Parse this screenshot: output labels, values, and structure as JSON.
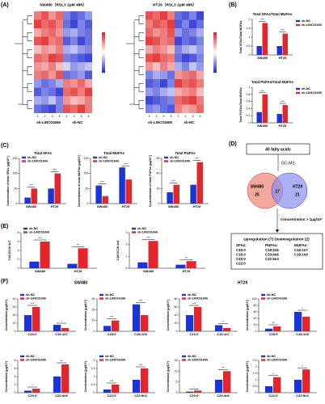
{
  "panel_labels": [
    "(A)",
    "(B)",
    "(C)",
    "(D)",
    "(E)",
    "(F)"
  ],
  "heatmaps": [
    {
      "title": "SW480（RSL3 2μM 48h）",
      "groups": [
        "sh-LINC01606",
        "sh-NC"
      ],
      "columns": [
        "1",
        "2",
        "3",
        "4",
        "1",
        "2",
        "3",
        "4"
      ],
      "values": [
        [
          0.6,
          0.8,
          0.5,
          0.7,
          -0.6,
          -0.8,
          -0.7,
          -0.5
        ],
        [
          0.9,
          0.7,
          0.8,
          0.6,
          -0.7,
          -0.9,
          -0.6,
          -0.8
        ],
        [
          0.4,
          0.6,
          0.7,
          0.5,
          -0.5,
          -0.4,
          -0.6,
          -0.7
        ],
        [
          0.8,
          0.9,
          0.6,
          0.7,
          -0.8,
          -0.6,
          -0.9,
          -0.7
        ],
        [
          0.3,
          0.5,
          0.4,
          0.6,
          -0.4,
          -0.3,
          -0.5,
          -0.6
        ],
        [
          0.7,
          0.6,
          0.9,
          0.8,
          -0.6,
          -0.7,
          -0.8,
          -0.9
        ],
        [
          0.5,
          0.4,
          0.6,
          0.3,
          -0.2,
          -0.5,
          -0.4,
          -0.3
        ],
        [
          0.6,
          0.7,
          0.5,
          0.8,
          -0.7,
          -0.6,
          -0.5,
          -0.8
        ],
        [
          -0.5,
          -0.7,
          -0.6,
          -0.4,
          0.6,
          0.5,
          0.7,
          0.4
        ],
        [
          -0.8,
          -0.6,
          -0.7,
          -0.9,
          0.7,
          0.8,
          0.6,
          0.9
        ],
        [
          -0.4,
          -0.5,
          -0.3,
          -0.6,
          0.5,
          0.3,
          0.4,
          0.6
        ],
        [
          -0.7,
          -0.8,
          -0.9,
          -0.6,
          0.8,
          0.7,
          0.9,
          0.6
        ]
      ]
    },
    {
      "title": "HT29（RSL3 2μM 48h）",
      "groups": [
        "sh-LINC01606",
        "sh-NC"
      ],
      "columns": [
        "1",
        "2",
        "3",
        "4",
        "1",
        "2",
        "3",
        "4"
      ],
      "values": [
        [
          0.8,
          0.7,
          0.9,
          0.6,
          -0.7,
          -0.8,
          -0.6,
          -0.9
        ],
        [
          0.6,
          0.8,
          0.7,
          0.9,
          -0.8,
          -0.6,
          -0.9,
          -0.7
        ],
        [
          0.7,
          0.5,
          0.6,
          0.8,
          -0.5,
          -0.7,
          -0.6,
          -0.4
        ],
        [
          0.9,
          0.8,
          0.6,
          0.7,
          -0.9,
          -0.7,
          -0.8,
          -0.6
        ],
        [
          0.4,
          0.6,
          0.5,
          0.3,
          -0.6,
          -0.4,
          -0.3,
          -0.5
        ],
        [
          0.8,
          0.9,
          0.7,
          0.6,
          -0.7,
          -0.9,
          -0.8,
          -0.6
        ],
        [
          0.5,
          0.3,
          0.6,
          0.4,
          -0.4,
          -0.6,
          -0.3,
          -0.5
        ],
        [
          -0.6,
          -0.4,
          -0.5,
          -0.7,
          0.5,
          0.6,
          0.7,
          0.4
        ],
        [
          -0.8,
          -0.7,
          -0.9,
          -0.6,
          0.9,
          0.7,
          0.8,
          0.6
        ],
        [
          -0.5,
          -0.6,
          -0.4,
          -0.3,
          0.4,
          0.5,
          0.6,
          0.3
        ],
        [
          -0.9,
          -0.8,
          -0.7,
          -0.6,
          0.7,
          0.8,
          0.9,
          0.6
        ],
        [
          -0.6,
          -0.5,
          -0.7,
          -0.8,
          0.6,
          0.4,
          0.5,
          0.7
        ]
      ]
    }
  ],
  "chart_data": [
    {
      "type": "bar",
      "title": "Total SFAs/Total MUFAs",
      "ylabel": "Total SFAs/Total MUFAs",
      "categories": [
        "SW480",
        "HT29"
      ],
      "series": [
        {
          "name": "sh-NC",
          "color": "#1a35d6",
          "values": [
            0.5,
            0.5
          ]
        },
        {
          "name": "sh-LINC01606",
          "color": "#e3262b",
          "values": [
            1.8,
            1.2
          ]
        }
      ],
      "ylim": [
        0,
        2
      ],
      "yticks": [
        0,
        0.5,
        1,
        1.5,
        2
      ],
      "stars": [
        "***",
        "***"
      ]
    },
    {
      "type": "bar",
      "title": "Total PUFAs/Total MUFAs",
      "ylabel": "Total PUFAs/Total MUFAs",
      "categories": [
        "SW480",
        "HT29"
      ],
      "series": [
        {
          "name": "sh-NC",
          "color": "#1a35d6",
          "values": [
            0.3,
            0.25
          ]
        },
        {
          "name": "sh-LINC01606",
          "color": "#e3262b",
          "values": [
            0.8,
            0.5
          ]
        }
      ],
      "ylim": [
        0,
        1
      ],
      "yticks": [
        0,
        0.2,
        0.4,
        0.6,
        0.8,
        1
      ],
      "stars": [
        "***",
        "***"
      ]
    },
    {
      "type": "bar",
      "title": "Total SFAs",
      "ylabel": "Concentration of total SFAs (μg/10⁷)",
      "categories": [
        "SW480",
        "HT29"
      ],
      "series": [
        {
          "name": "sh-NC",
          "color": "#1a35d6",
          "values": [
            20,
            50
          ]
        },
        {
          "name": "sh-LINC01606",
          "color": "#e3262b",
          "values": [
            50,
            100
          ]
        }
      ],
      "ylim": [
        0,
        150
      ],
      "yticks": [
        0,
        50,
        100,
        150
      ],
      "stars": [
        "***",
        "***"
      ]
    },
    {
      "type": "bar",
      "title": "Total MUFAs",
      "ylabel": "Concentration of total MUFAs (μg/10⁷)",
      "categories": [
        "SW480",
        "HT29"
      ],
      "series": [
        {
          "name": "sh-NC",
          "color": "#1a35d6",
          "values": [
            60,
            120
          ]
        },
        {
          "name": "sh-LINC01606",
          "color": "#e3262b",
          "values": [
            25,
            80
          ]
        }
      ],
      "ylim": [
        0,
        150
      ],
      "yticks": [
        0,
        50,
        100,
        150
      ],
      "stars": [
        "***",
        "***"
      ]
    },
    {
      "type": "bar",
      "title": "Total PUFAs",
      "ylabel": "Concentration of total PUFAs (μg/10⁷)",
      "categories": [
        "SW480",
        "HT29"
      ],
      "series": [
        {
          "name": "sh-NC",
          "color": "#1a35d6",
          "values": [
            15,
            25
          ]
        },
        {
          "name": "sh-LINC01606",
          "color": "#e3262b",
          "values": [
            25,
            55
          ]
        }
      ],
      "ylim": [
        0,
        60
      ],
      "yticks": [
        0,
        20,
        40,
        60
      ],
      "stars": [
        "***",
        "***"
      ]
    },
    {
      "type": "bar",
      "ylabel": "C16:0/C16:1n7",
      "categories": [
        "SW480",
        "HT29"
      ],
      "series": [
        {
          "name": "sh-NC",
          "color": "#1a35d6",
          "values": [
            1.5,
            1
          ]
        },
        {
          "name": "sh-LINC01606",
          "color": "#e3262b",
          "values": [
            6,
            4.5
          ]
        }
      ],
      "ylim": [
        0,
        8
      ],
      "yticks": [
        0,
        2,
        4,
        6,
        8
      ],
      "stars": [
        "***",
        "**"
      ]
    },
    {
      "type": "bar",
      "ylabel": "C18:0/C18:1n9",
      "categories": [
        "SW480",
        "HT29"
      ],
      "series": [
        {
          "name": "sh-NC",
          "color": "#1a35d6",
          "values": [
            0.5,
            0.3
          ]
        },
        {
          "name": "sh-LINC01606",
          "color": "#e3262b",
          "values": [
            2.3,
            0.6
          ]
        }
      ],
      "ylim": [
        0,
        3
      ],
      "yticks": [
        0,
        1,
        2,
        3
      ],
      "stars": [
        "***",
        "**"
      ]
    },
    {
      "type": "bar",
      "ylabel": "Concentration (μg/10⁷)",
      "categories": [
        "C16:0",
        "C16:1n7"
      ],
      "series": [
        {
          "name": "sh-NC",
          "color": "#1a35d6",
          "values": [
            20,
            8
          ]
        },
        {
          "name": "sh-LINC01606",
          "color": "#e3262b",
          "values": [
            30,
            4
          ]
        }
      ],
      "ylim": [
        0,
        40
      ],
      "yticks": [
        0,
        10,
        20,
        30,
        40
      ],
      "stars": [
        "***",
        "*"
      ]
    },
    {
      "type": "bar",
      "ylabel": "Concentration (μg/10⁷)",
      "categories": [
        "C18:0",
        "C18:1n9"
      ],
      "series": [
        {
          "name": "sh-NC",
          "color": "#1a35d6",
          "values": [
            5,
            25
          ]
        },
        {
          "name": "sh-LINC01606",
          "color": "#e3262b",
          "values": [
            10,
            15
          ]
        }
      ],
      "ylim": [
        0,
        30
      ],
      "yticks": [
        0,
        10,
        20,
        30
      ],
      "stars": [
        "***",
        "***"
      ]
    },
    {
      "type": "bar",
      "ylabel": "Concentration (μg/10⁷)",
      "categories": [
        "C16:0",
        "C16:1n7"
      ],
      "series": [
        {
          "name": "sh-NC",
          "color": "#1a35d6",
          "values": [
            40,
            15
          ]
        },
        {
          "name": "sh-LINC01606",
          "color": "#e3262b",
          "values": [
            60,
            8
          ]
        }
      ],
      "ylim": [
        0,
        80
      ],
      "yticks": [
        0,
        20,
        40,
        60,
        80
      ],
      "stars": [
        "***",
        "*"
      ]
    },
    {
      "type": "bar",
      "ylabel": "Concentration (μg/10⁷)",
      "categories": [
        "C18:0",
        "C18:1n9"
      ],
      "series": [
        {
          "name": "sh-NC",
          "color": "#1a35d6",
          "values": [
            8,
            60
          ]
        },
        {
          "name": "sh-LINC01606",
          "color": "#e3262b",
          "values": [
            15,
            45
          ]
        }
      ],
      "ylim": [
        0,
        100
      ],
      "yticks": [
        0,
        20,
        40,
        60,
        80,
        100
      ],
      "stars": [
        "**",
        "*"
      ]
    },
    {
      "type": "bar",
      "ylabel": "Concentration (μg/10⁷)",
      "categories": [
        "C20:0",
        "C20:4n6"
      ],
      "series": [
        {
          "name": "sh-NC",
          "color": "#1a35d6",
          "values": [
            0.5,
            4
          ]
        },
        {
          "name": "sh-LINC01606",
          "color": "#e3262b",
          "values": [
            1,
            7
          ]
        }
      ],
      "ylim": [
        0,
        8
      ],
      "yticks": [
        0,
        2,
        4,
        6,
        8
      ],
      "stars": [
        "*",
        "**"
      ]
    },
    {
      "type": "bar",
      "ylabel": "Concentration (μg/10⁷)",
      "categories": [
        "C22:0",
        "C22:5n3"
      ],
      "series": [
        {
          "name": "sh-NC",
          "color": "#1a35d6",
          "values": [
            0.2,
            0.8
          ]
        },
        {
          "name": "sh-LINC01606",
          "color": "#e3262b",
          "values": [
            0.5,
            1.5
          ]
        }
      ],
      "ylim": [
        0,
        2
      ],
      "yticks": [
        0,
        0.5,
        1,
        1.5,
        2
      ],
      "stars": [
        "***",
        "***"
      ]
    },
    {
      "type": "bar",
      "ylabel": "Concentration (μg/10⁷)",
      "categories": [
        "C20:0",
        "C20:4n6"
      ],
      "series": [
        {
          "name": "sh-NC",
          "color": "#1a35d6",
          "values": [
            0.5,
            6
          ]
        },
        {
          "name": "sh-LINC01606",
          "color": "#e3262b",
          "values": [
            1,
            10
          ]
        }
      ],
      "ylim": [
        0,
        15
      ],
      "yticks": [
        0,
        5,
        10,
        15
      ],
      "stars": [
        "*",
        "**"
      ]
    },
    {
      "type": "bar",
      "ylabel": "Concentration (μg/10⁷)",
      "categories": [
        "C22:0",
        "C22:5n3"
      ],
      "series": [
        {
          "name": "sh-NC",
          "color": "#1a35d6",
          "values": [
            0.5,
            1
          ]
        },
        {
          "name": "sh-LINC01606",
          "color": "#e3262b",
          "values": [
            1.2,
            1.8
          ]
        }
      ],
      "ylim": [
        0,
        2.5
      ],
      "yticks": [
        0,
        0.5,
        1,
        1.5,
        2,
        2.5
      ],
      "stars": [
        "*",
        "*"
      ]
    }
  ],
  "f_groups": [
    "SW480",
    "HT29"
  ],
  "diagram": {
    "top": "40 fatty acids",
    "method": "GC-MS",
    "left_name": "SW480",
    "left_count": "25",
    "overlap": "17",
    "right_name": "HT29",
    "right_count": "21",
    "filter": "Concentration > 1μg/10⁷",
    "result_title": "Upregulation (7) Downregulation (2)",
    "classes": [
      {
        "name": "SFAs:",
        "items": [
          "C16:0",
          "C18:0",
          "C20:0",
          "C22:0"
        ]
      },
      {
        "name": "PUFAs:",
        "items": [
          "C18:2n6",
          "C20:4n6",
          "C22:5n3"
        ]
      },
      {
        "name": "MUFAs:",
        "items": [
          "C16:1n7",
          "C18:1n9"
        ]
      }
    ]
  }
}
